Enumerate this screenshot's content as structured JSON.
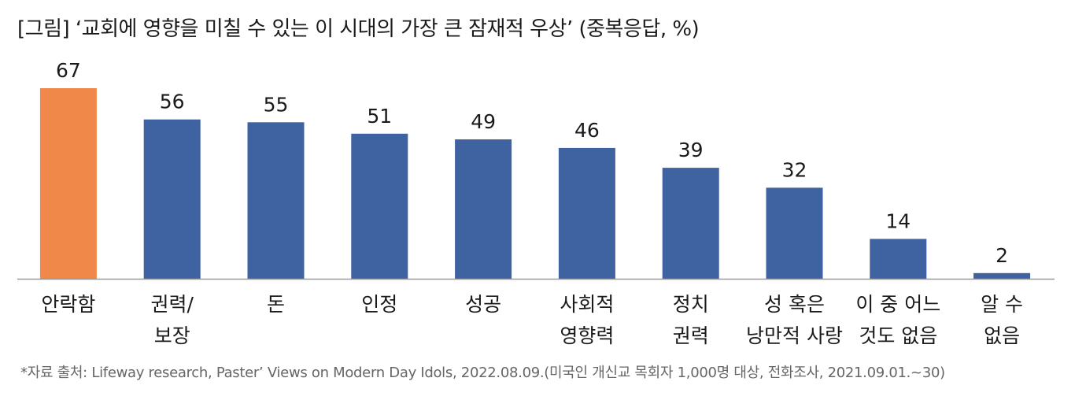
{
  "title": "[그림] ‘교회에 영향을 미칠 수 있는 이 시대의 가장 큰 잠재적 우상’ (중복응답, %)",
  "source": "*자료 출처: Lifeway research, Paster’ Views on Modern Day Idols, 2022.08.09.(미국인 개신교 목회자 1,000명 대상, 전화조사, 2021.09.01.~30)",
  "colors": {
    "highlight": "#F0884A",
    "bar": "#3F62A0",
    "axis": "#999999"
  },
  "chart_data": {
    "type": "bar",
    "title": "[그림] ‘교회에 영향을 미칠 수 있는 이 시대의 가장 큰 잠재적 우상’ (중복응답, %)",
    "categories": [
      [
        "안락함"
      ],
      [
        "권력/",
        "보장"
      ],
      [
        "돈"
      ],
      [
        "인정"
      ],
      [
        "성공"
      ],
      [
        "사회적",
        "영향력"
      ],
      [
        "정치",
        "권력"
      ],
      [
        "성 혹은",
        "낭만적 사랑"
      ],
      [
        "이 중 어느",
        "것도 없음"
      ],
      [
        "알 수",
        "없음"
      ]
    ],
    "values": [
      67,
      56,
      55,
      51,
      49,
      46,
      39,
      32,
      14,
      2
    ],
    "highlight_index": 0,
    "ylim": [
      0,
      67
    ],
    "grid": false,
    "legend": "none"
  }
}
